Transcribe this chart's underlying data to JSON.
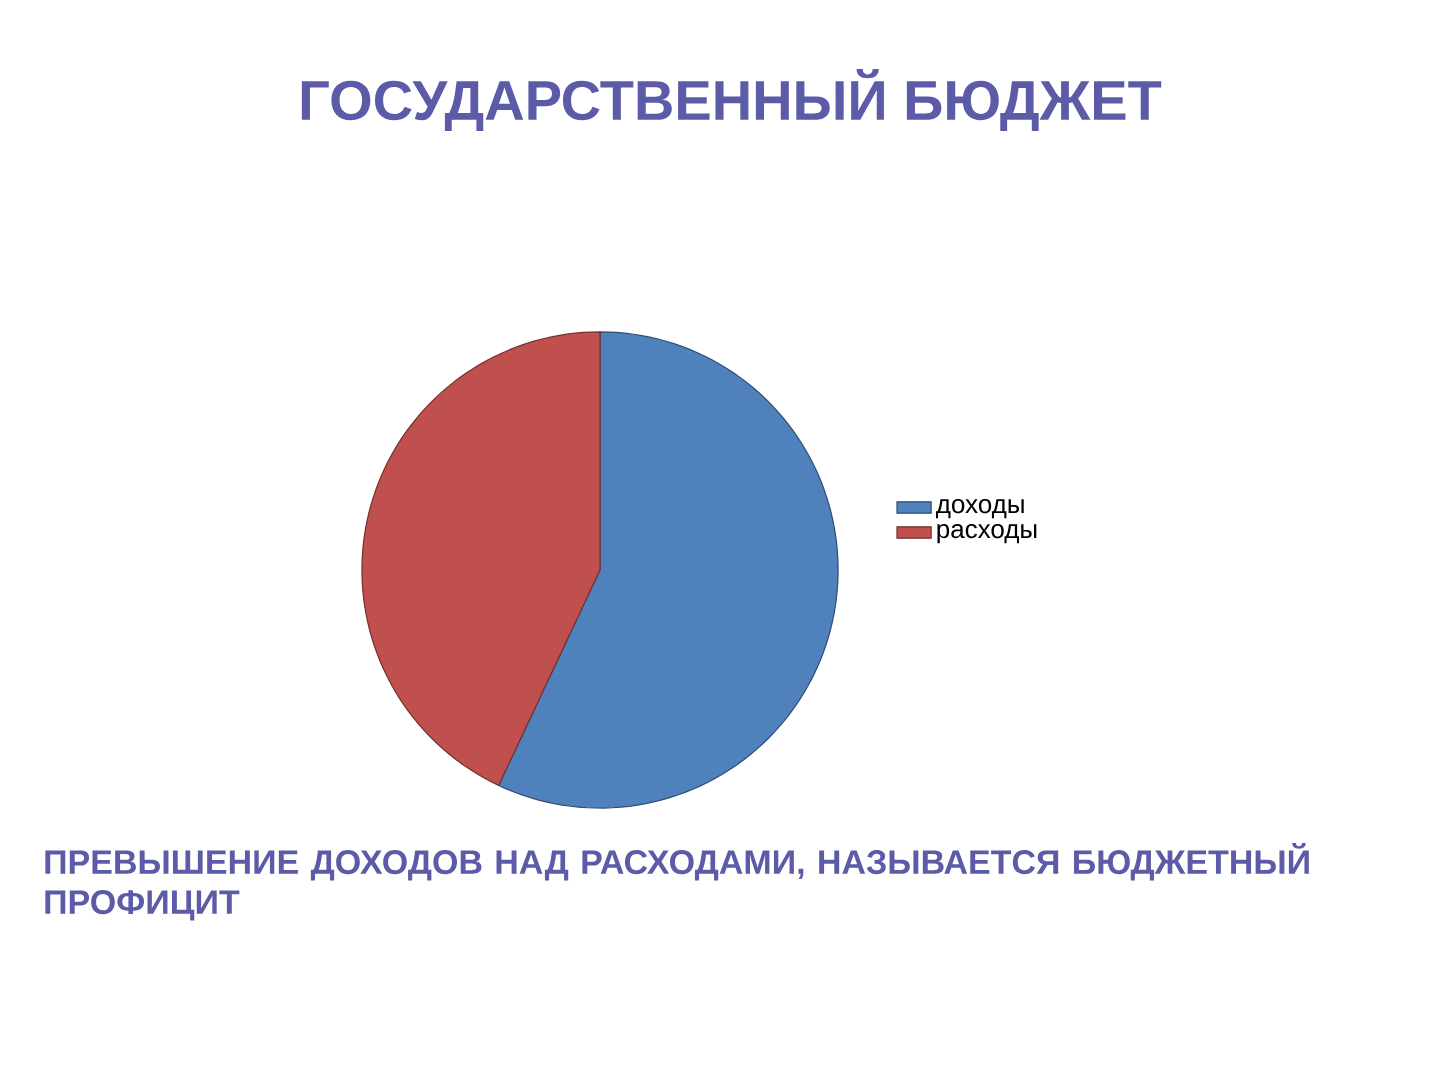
{
  "chart_data": {
    "type": "pie",
    "title": "ГОСУДАРСТВЕННЫЙ БЮДЖЕТ",
    "categories": [
      "доходы",
      "расходы"
    ],
    "values": [
      57,
      43
    ],
    "colors": [
      "#4f81bd",
      "#c0504d"
    ],
    "legend": "right",
    "annotations": [
      "ПРЕВЫШЕНИЕ ДОХОДОВ НАД РАСХОДАМИ, НАЗЫВАЕТСЯ БЮДЖЕТНЫЙ ПРОФИЦИТ"
    ]
  }
}
